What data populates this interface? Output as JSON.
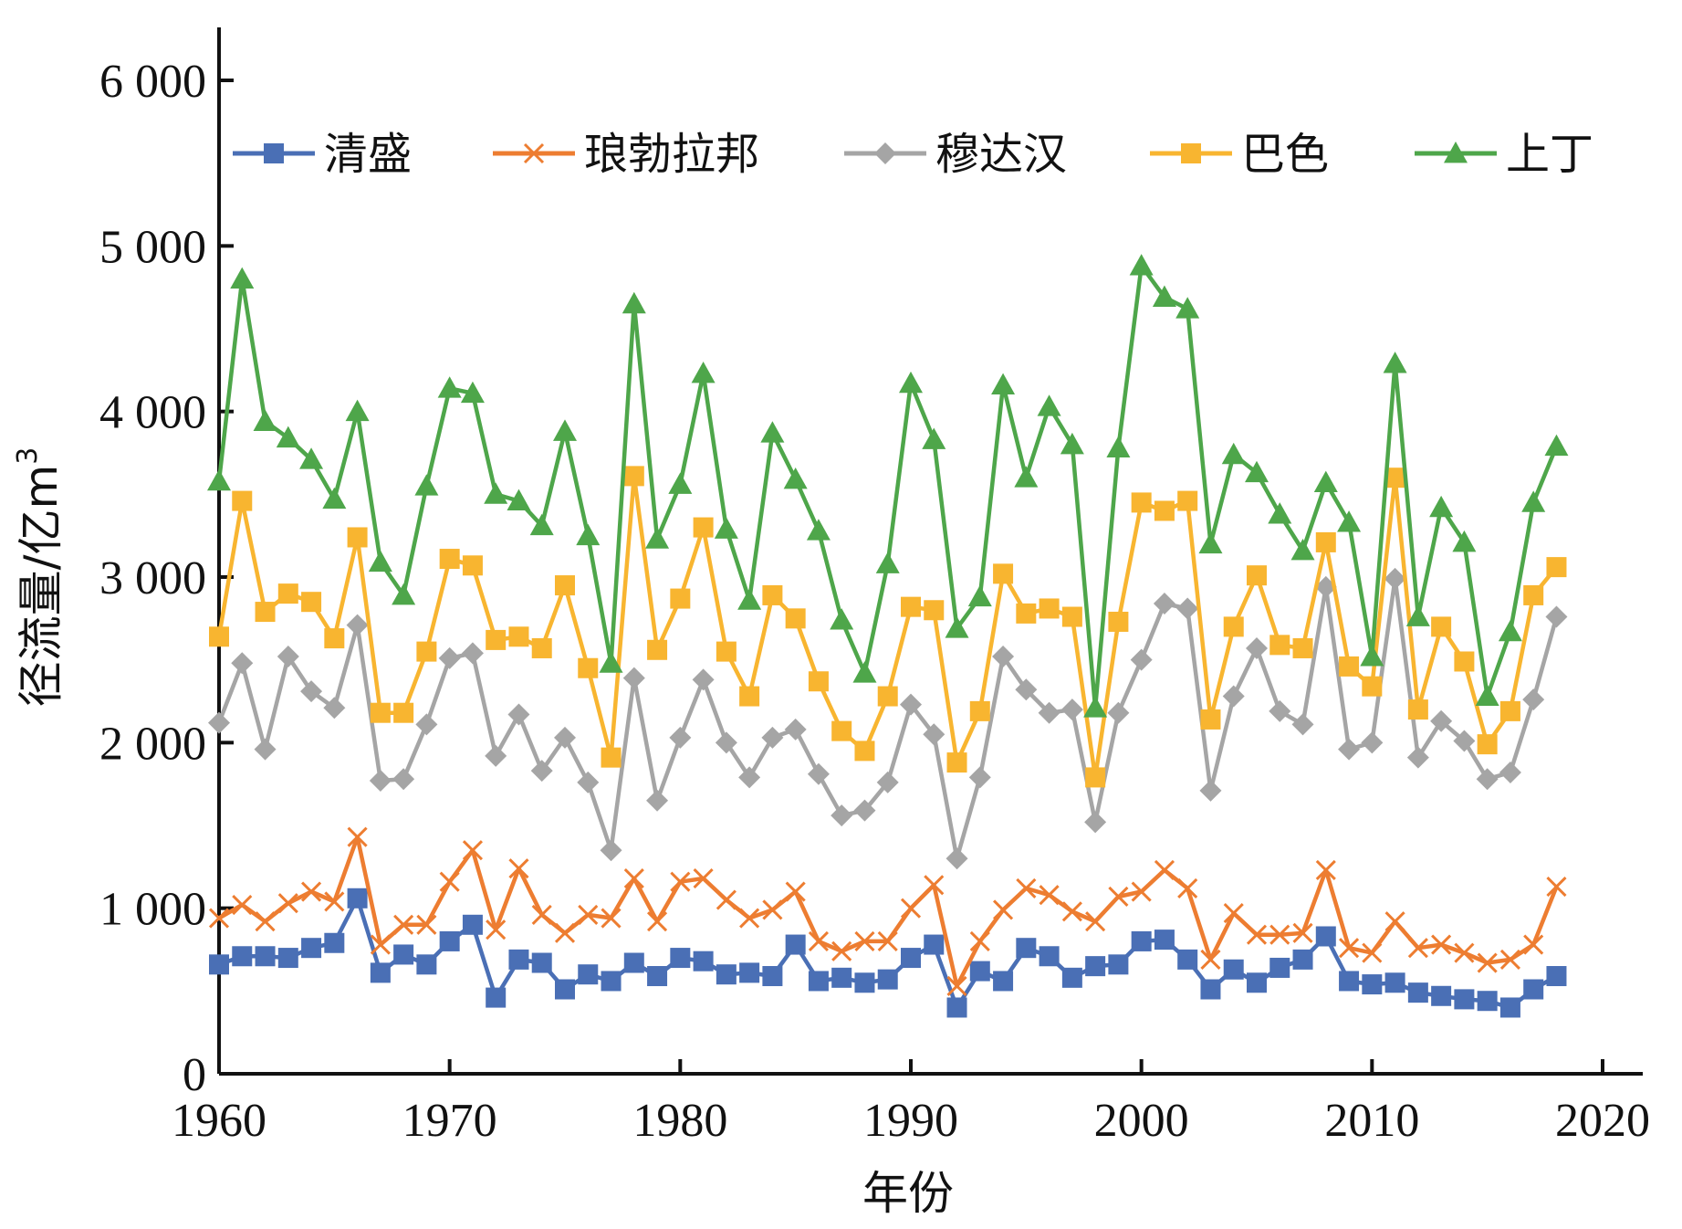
{
  "chart_data": {
    "type": "line",
    "title": "",
    "xlabel": "年份",
    "ylabel": "径流量/亿m",
    "ylabel_sup": "3",
    "xlim": [
      1960,
      2020
    ],
    "ylim": [
      0,
      6000
    ],
    "xticks": [
      1960,
      1970,
      1980,
      1990,
      2000,
      2010,
      2020
    ],
    "xtick_labels": [
      "1960",
      "1970",
      "1980",
      "1990",
      "2000",
      "2010",
      "2020"
    ],
    "yticks": [
      0,
      1000,
      2000,
      3000,
      4000,
      5000,
      6000
    ],
    "ytick_labels": [
      "0",
      "1 000",
      "2 000",
      "3 000",
      "4 000",
      "5 000",
      "6 000"
    ],
    "grid": false,
    "legend_position": "top",
    "x": [
      1960,
      1961,
      1962,
      1963,
      1964,
      1965,
      1966,
      1967,
      1968,
      1969,
      1970,
      1971,
      1972,
      1973,
      1974,
      1975,
      1976,
      1977,
      1978,
      1979,
      1980,
      1981,
      1982,
      1983,
      1984,
      1985,
      1986,
      1987,
      1988,
      1989,
      1990,
      1991,
      1992,
      1993,
      1994,
      1995,
      1996,
      1997,
      1998,
      1999,
      2000,
      2001,
      2002,
      2003,
      2004,
      2005,
      2006,
      2007,
      2008,
      2009,
      2010,
      2011,
      2012,
      2013,
      2014,
      2015,
      2016,
      2017,
      2018
    ],
    "series": [
      {
        "name": "清盛",
        "color": "#4a6fb5",
        "marker": "square",
        "values": [
          660,
          710,
          710,
          700,
          760,
          790,
          1060,
          610,
          720,
          660,
          800,
          900,
          460,
          690,
          670,
          510,
          600,
          560,
          670,
          590,
          700,
          680,
          600,
          610,
          590,
          780,
          560,
          580,
          550,
          570,
          700,
          780,
          400,
          620,
          560,
          760,
          710,
          580,
          650,
          660,
          800,
          810,
          690,
          510,
          630,
          550,
          640,
          690,
          830,
          560,
          540,
          550,
          490,
          470,
          450,
          440,
          400,
          510,
          590
        ]
      },
      {
        "name": "琅勃拉邦",
        "color": "#ed7d31",
        "marker": "x",
        "values": [
          940,
          1020,
          920,
          1030,
          1100,
          1040,
          1430,
          780,
          900,
          900,
          1160,
          1350,
          870,
          1240,
          960,
          850,
          960,
          940,
          1180,
          920,
          1160,
          1180,
          1050,
          940,
          990,
          1100,
          800,
          740,
          800,
          800,
          1000,
          1140,
          530,
          800,
          990,
          1120,
          1080,
          980,
          920,
          1070,
          1100,
          1230,
          1120,
          690,
          970,
          840,
          840,
          850,
          1230,
          760,
          730,
          920,
          760,
          780,
          730,
          670,
          690,
          780,
          1130
        ]
      },
      {
        "name": "穆达汉",
        "color": "#a5a5a5",
        "marker": "diamond",
        "values": [
          2120,
          2480,
          1960,
          2520,
          2310,
          2210,
          2710,
          1770,
          1780,
          2110,
          2510,
          2540,
          1920,
          2170,
          1830,
          2030,
          1760,
          1350,
          2390,
          1650,
          2030,
          2380,
          2000,
          1790,
          2030,
          2080,
          1810,
          1560,
          1590,
          1760,
          2230,
          2050,
          1300,
          1790,
          2520,
          2320,
          2180,
          2200,
          1520,
          2180,
          2500,
          2840,
          2810,
          1710,
          2280,
          2570,
          2190,
          2110,
          2940,
          1960,
          2000,
          2990,
          1910,
          2130,
          2010,
          1780,
          1820,
          2260,
          2760
        ]
      },
      {
        "name": "巴色",
        "color": "#f8b530",
        "marker": "square",
        "values": [
          2640,
          3460,
          2790,
          2900,
          2850,
          2630,
          3240,
          2180,
          2180,
          2550,
          3110,
          3070,
          2620,
          2640,
          2570,
          2950,
          2450,
          1910,
          3610,
          2560,
          2870,
          3300,
          2550,
          2280,
          2890,
          2750,
          2370,
          2070,
          1950,
          2280,
          2820,
          2800,
          1880,
          2190,
          3020,
          2780,
          2810,
          2760,
          1790,
          2730,
          3450,
          3400,
          3460,
          2140,
          2700,
          3010,
          2590,
          2570,
          3210,
          2460,
          2340,
          3600,
          2200,
          2700,
          2490,
          1990,
          2190,
          2890,
          3060
        ]
      },
      {
        "name": "上丁",
        "color": "#4ea64a",
        "marker": "triangle",
        "values": [
          3580,
          4800,
          3940,
          3840,
          3710,
          3470,
          4000,
          3090,
          2890,
          3550,
          4140,
          4110,
          3500,
          3460,
          3310,
          3880,
          3250,
          2480,
          4650,
          3230,
          3560,
          4230,
          3290,
          2860,
          3870,
          3590,
          3280,
          2740,
          2420,
          3080,
          4170,
          3830,
          2690,
          2880,
          4160,
          3600,
          4030,
          3800,
          2210,
          3780,
          4880,
          4690,
          4620,
          3200,
          3740,
          3630,
          3380,
          3160,
          3570,
          3330,
          2520,
          4290,
          2760,
          3420,
          3210,
          2280,
          2670,
          3450,
          3790
        ]
      }
    ]
  }
}
